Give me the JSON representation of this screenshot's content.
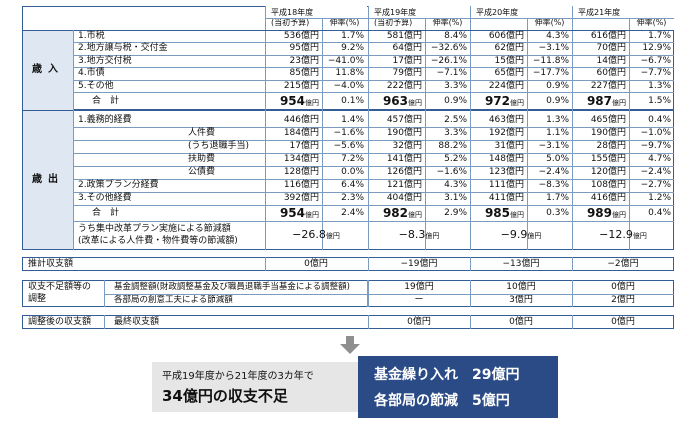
{
  "years": [
    {
      "title": "平成18年度",
      "sub": "(当初予算)"
    },
    {
      "title": "平成19年度",
      "sub": "(当初予算)"
    },
    {
      "title": "平成20年度",
      "sub": ""
    },
    {
      "title": "平成21年度",
      "sub": ""
    }
  ],
  "col_headers": {
    "rate": "伸率(%)"
  },
  "sections": {
    "income": {
      "label": "歳入",
      "rows": [
        {
          "label": "1.市税",
          "vals": [
            "536億円",
            "1.7%",
            "581億円",
            "8.4%",
            "606億円",
            "4.3%",
            "616億円",
            "1.7%"
          ]
        },
        {
          "label": "2.地方譲与税・交付金",
          "vals": [
            "95億円",
            "9.2%",
            "64億円",
            "−32.6%",
            "62億円",
            "−3.1%",
            "70億円",
            "12.9%"
          ]
        },
        {
          "label": "3.地方交付税",
          "vals": [
            "23億円",
            "−41.0%",
            "17億円",
            "−26.1%",
            "15億円",
            "−11.8%",
            "14億円",
            "−6.7%"
          ]
        },
        {
          "label": "4.市債",
          "vals": [
            "85億円",
            "11.8%",
            "79億円",
            "−7.1%",
            "65億円",
            "−17.7%",
            "60億円",
            "−7.7%"
          ]
        },
        {
          "label": "5.その他",
          "vals": [
            "215億円",
            "−4.0%",
            "222億円",
            "3.3%",
            "224億円",
            "0.9%",
            "227億円",
            "1.3%"
          ]
        }
      ],
      "total": {
        "label": "合　計",
        "vals": [
          "954",
          "0.1%",
          "963",
          "0.9%",
          "972",
          "0.9%",
          "987",
          "1.5%"
        ]
      }
    },
    "expense": {
      "label": "歳出",
      "rows": [
        {
          "label": "1.義務的経費",
          "indent": 0,
          "vals": [
            "446億円",
            "1.4%",
            "457億円",
            "2.5%",
            "463億円",
            "1.3%",
            "465億円",
            "0.4%"
          ]
        },
        {
          "label": "人件費",
          "indent": 2,
          "vals": [
            "184億円",
            "−1.6%",
            "190億円",
            "3.3%",
            "192億円",
            "1.1%",
            "190億円",
            "−1.0%"
          ]
        },
        {
          "label": "(うち退職手当)",
          "indent": 2,
          "vals": [
            "17億円",
            "−5.6%",
            "32億円",
            "88.2%",
            "31億円",
            "−3.1%",
            "28億円",
            "−9.7%"
          ]
        },
        {
          "label": "扶助費",
          "indent": 2,
          "vals": [
            "134億円",
            "7.2%",
            "141億円",
            "5.2%",
            "148億円",
            "5.0%",
            "155億円",
            "4.7%"
          ]
        },
        {
          "label": "公債費",
          "indent": 2,
          "vals": [
            "128億円",
            "0.0%",
            "126億円",
            "−1.6%",
            "123億円",
            "−2.4%",
            "120億円",
            "−2.4%"
          ]
        },
        {
          "label": "2.政策プラン分経費",
          "indent": 0,
          "vals": [
            "116億円",
            "6.4%",
            "121億円",
            "4.3%",
            "111億円",
            "−8.3%",
            "108億円",
            "−2.7%"
          ]
        },
        {
          "label": "3.その他経費",
          "indent": 0,
          "vals": [
            "392億円",
            "2.3%",
            "404億円",
            "3.1%",
            "411億円",
            "1.7%",
            "416億円",
            "1.2%"
          ]
        }
      ],
      "total": {
        "label": "合　計",
        "vals": [
          "954",
          "2.4%",
          "982",
          "2.9%",
          "985",
          "0.3%",
          "989",
          "0.4%"
        ]
      },
      "reform": {
        "label1": "うち集中改革プラン実施による節減額",
        "label2": "(改革による人件費・物件費等の節減額)",
        "vals": [
          "−26.8",
          "−8.3",
          "−9.9",
          "−12.9"
        ]
      }
    }
  },
  "unit_oku": "億円",
  "estimate": {
    "label": "推計収支額",
    "vals": [
      "0億円",
      "−19億円",
      "−13億円",
      "−2億円"
    ]
  },
  "adjust": {
    "label1": "収支不足額等の",
    "label2": "調整",
    "rows": [
      {
        "label": "基金調整額(財政調整基金及び職員退職手当基金による調整額)",
        "vals": [
          "",
          "19億円",
          "10億円",
          "0億円"
        ]
      },
      {
        "label": "各部局の創意工夫による節減額",
        "vals": [
          "",
          "ー",
          "3億円",
          "2億円"
        ]
      }
    ]
  },
  "after": {
    "label": "調整後の収支額",
    "sub": "最終収支額",
    "vals": [
      "",
      "0億円",
      "0億円",
      "0億円"
    ]
  },
  "summary": {
    "line1": "平成19年度から21年度の3カ年で",
    "line2": "34億円の収支不足",
    "fund": "基金繰り入れ　29億円",
    "dept": "各部局の節減　5億円"
  },
  "colors": {
    "navy": "#2a4b86",
    "section_bg": "#dfe7f2",
    "arrow": "#8f8f8f",
    "summary_bg": "#e6e6e6"
  }
}
